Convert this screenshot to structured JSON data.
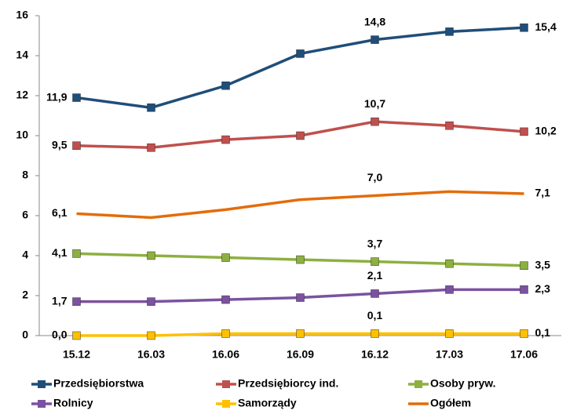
{
  "chart_data": {
    "type": "line",
    "categories": [
      "15.12",
      "16.03",
      "16.06",
      "16.09",
      "16.12",
      "17.03",
      "17.06"
    ],
    "ylim": [
      0,
      16
    ],
    "yticks": [
      0,
      2,
      4,
      6,
      8,
      10,
      12,
      14,
      16
    ],
    "grid": false,
    "series": [
      {
        "name": "Przedsiębiorstwa",
        "color": "#1f4e79",
        "marker": true,
        "values": [
          11.9,
          11.4,
          12.5,
          14.1,
          14.8,
          15.2,
          15.4
        ],
        "value_labels": [
          "11,9",
          null,
          null,
          null,
          "14,8",
          null,
          "15,4"
        ]
      },
      {
        "name": "Przedsiębiorcy ind.",
        "color": "#c0504d",
        "marker": true,
        "values": [
          9.5,
          9.4,
          9.8,
          10.0,
          10.7,
          10.5,
          10.2
        ],
        "value_labels": [
          "9,5",
          null,
          null,
          null,
          "10,7",
          null,
          "10,2"
        ]
      },
      {
        "name": "Osoby pryw.",
        "color": "#8db040",
        "marker": true,
        "values": [
          4.1,
          4.0,
          3.9,
          3.8,
          3.7,
          3.6,
          3.5
        ],
        "value_labels": [
          "4,1",
          null,
          null,
          null,
          "3,7",
          null,
          "3,5"
        ]
      },
      {
        "name": "Rolnicy",
        "color": "#7b52a0",
        "marker": true,
        "values": [
          1.7,
          1.7,
          1.8,
          1.9,
          2.1,
          2.3,
          2.3
        ],
        "value_labels": [
          "1,7",
          null,
          null,
          null,
          "2,1",
          null,
          "2,3"
        ]
      },
      {
        "name": "Samorządy",
        "color": "#ffc000",
        "marker": true,
        "values": [
          0.0,
          0.0,
          0.1,
          0.1,
          0.1,
          0.1,
          0.1
        ],
        "value_labels": [
          "0,0",
          null,
          null,
          null,
          "0,1",
          null,
          "0,1"
        ]
      },
      {
        "name": "Ogółem",
        "color": "#e46c0a",
        "marker": false,
        "values": [
          6.1,
          5.9,
          6.3,
          6.8,
          7.0,
          7.2,
          7.1
        ],
        "value_labels": [
          "6,1",
          null,
          null,
          null,
          "7,0",
          null,
          "7,1"
        ]
      }
    ]
  }
}
